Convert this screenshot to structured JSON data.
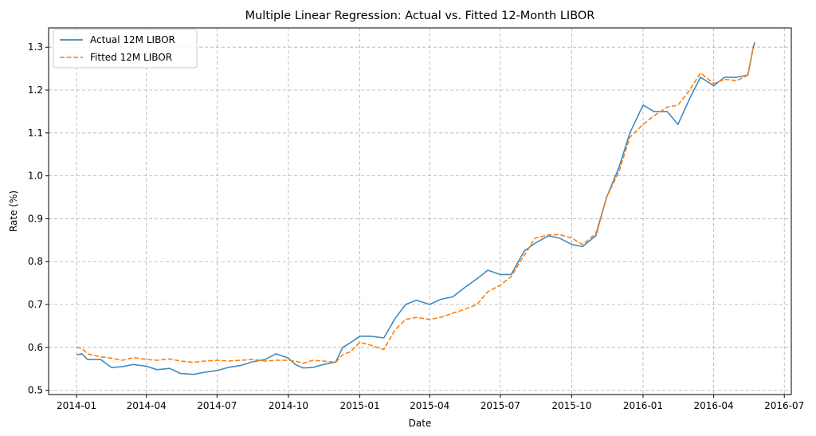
{
  "chart_data": {
    "type": "line",
    "title": "Multiple Linear Regression: Actual vs. Fitted 12-Month LIBOR",
    "xlabel": "Date",
    "ylabel": "Rate (%)",
    "xlim": [
      "2013-11-26",
      "2016-07-10"
    ],
    "ylim": [
      0.49,
      1.345
    ],
    "x_ticks": [
      {
        "date": "2014-01-01",
        "label": "2014-01"
      },
      {
        "date": "2014-04-01",
        "label": "2014-04"
      },
      {
        "date": "2014-07-01",
        "label": "2014-07"
      },
      {
        "date": "2014-10-01",
        "label": "2014-10"
      },
      {
        "date": "2015-01-01",
        "label": "2015-01"
      },
      {
        "date": "2015-04-01",
        "label": "2015-04"
      },
      {
        "date": "2015-07-01",
        "label": "2015-07"
      },
      {
        "date": "2015-10-01",
        "label": "2015-10"
      },
      {
        "date": "2016-01-01",
        "label": "2016-01"
      },
      {
        "date": "2016-04-01",
        "label": "2016-04"
      },
      {
        "date": "2016-07-01",
        "label": "2016-07"
      }
    ],
    "y_ticks": [
      {
        "value": 0.5,
        "label": "0.5"
      },
      {
        "value": 0.6,
        "label": "0.6"
      },
      {
        "value": 0.7,
        "label": "0.7"
      },
      {
        "value": 0.8,
        "label": "0.8"
      },
      {
        "value": 0.9,
        "label": "0.9"
      },
      {
        "value": 1.0,
        "label": "1.0"
      },
      {
        "value": 1.1,
        "label": "1.1"
      },
      {
        "value": 1.2,
        "label": "1.2"
      },
      {
        "value": 1.3,
        "label": "1.3"
      }
    ],
    "grid": true,
    "legend": {
      "position": "top-left"
    },
    "series": [
      {
        "name": "Actual 12M LIBOR",
        "color": "#1f77b4",
        "style": "solid",
        "x": [
          "2014-01-01",
          "2014-01-08",
          "2014-01-15",
          "2014-02-01",
          "2014-02-15",
          "2014-03-01",
          "2014-03-15",
          "2014-04-01",
          "2014-04-15",
          "2014-05-01",
          "2014-05-15",
          "2014-06-01",
          "2014-06-15",
          "2014-07-01",
          "2014-07-15",
          "2014-08-01",
          "2014-08-15",
          "2014-09-01",
          "2014-09-15",
          "2014-10-01",
          "2014-10-10",
          "2014-10-20",
          "2014-11-01",
          "2014-11-15",
          "2014-12-01",
          "2014-12-10",
          "2014-12-20",
          "2015-01-01",
          "2015-01-15",
          "2015-02-01",
          "2015-02-15",
          "2015-03-01",
          "2015-03-15",
          "2015-04-01",
          "2015-04-15",
          "2015-05-01",
          "2015-05-15",
          "2015-06-01",
          "2015-06-15",
          "2015-07-01",
          "2015-07-15",
          "2015-08-01",
          "2015-08-15",
          "2015-09-01",
          "2015-09-15",
          "2015-10-01",
          "2015-10-15",
          "2015-11-01",
          "2015-11-15",
          "2015-12-01",
          "2015-12-15",
          "2016-01-01",
          "2016-01-15",
          "2016-02-01",
          "2016-02-15",
          "2016-03-01",
          "2016-03-15",
          "2016-04-01",
          "2016-04-15",
          "2016-05-01",
          "2016-05-15",
          "2016-05-22",
          "2016-05-24"
        ],
        "y": [
          0.583,
          0.585,
          0.572,
          0.572,
          0.553,
          0.555,
          0.56,
          0.556,
          0.548,
          0.551,
          0.539,
          0.537,
          0.542,
          0.546,
          0.553,
          0.558,
          0.566,
          0.572,
          0.585,
          0.575,
          0.56,
          0.552,
          0.553,
          0.56,
          0.566,
          0.6,
          0.611,
          0.626,
          0.626,
          0.622,
          0.666,
          0.7,
          0.71,
          0.7,
          0.712,
          0.718,
          0.738,
          0.76,
          0.78,
          0.77,
          0.77,
          0.825,
          0.843,
          0.86,
          0.855,
          0.84,
          0.835,
          0.86,
          0.95,
          1.02,
          1.1,
          1.165,
          1.15,
          1.15,
          1.12,
          1.18,
          1.23,
          1.21,
          1.23,
          1.23,
          1.235,
          1.3,
          1.312
        ]
      },
      {
        "name": "Fitted 12M LIBOR",
        "color": "#ff7f0e",
        "style": "dashed",
        "x": [
          "2014-01-01",
          "2014-01-08",
          "2014-01-15",
          "2014-02-01",
          "2014-02-15",
          "2014-03-01",
          "2014-03-15",
          "2014-04-01",
          "2014-04-15",
          "2014-05-01",
          "2014-05-15",
          "2014-06-01",
          "2014-06-15",
          "2014-07-01",
          "2014-07-15",
          "2014-08-01",
          "2014-08-15",
          "2014-09-01",
          "2014-09-15",
          "2014-10-01",
          "2014-10-10",
          "2014-10-20",
          "2014-11-01",
          "2014-11-15",
          "2014-12-01",
          "2014-12-10",
          "2014-12-20",
          "2015-01-01",
          "2015-01-15",
          "2015-02-01",
          "2015-02-15",
          "2015-03-01",
          "2015-03-15",
          "2015-04-01",
          "2015-04-15",
          "2015-05-01",
          "2015-05-15",
          "2015-06-01",
          "2015-06-15",
          "2015-07-01",
          "2015-07-15",
          "2015-08-01",
          "2015-08-15",
          "2015-09-01",
          "2015-09-15",
          "2015-10-01",
          "2015-10-15",
          "2015-11-01",
          "2015-11-15",
          "2015-12-01",
          "2015-12-15",
          "2016-01-01",
          "2016-01-15",
          "2016-02-01",
          "2016-02-15",
          "2016-03-01",
          "2016-03-15",
          "2016-04-01",
          "2016-04-15",
          "2016-05-01",
          "2016-05-15",
          "2016-05-22",
          "2016-05-24"
        ],
        "y": [
          0.6,
          0.598,
          0.585,
          0.578,
          0.575,
          0.57,
          0.576,
          0.572,
          0.57,
          0.573,
          0.568,
          0.565,
          0.568,
          0.57,
          0.568,
          0.57,
          0.572,
          0.568,
          0.57,
          0.57,
          0.568,
          0.563,
          0.57,
          0.568,
          0.565,
          0.583,
          0.59,
          0.612,
          0.605,
          0.595,
          0.64,
          0.665,
          0.67,
          0.665,
          0.67,
          0.68,
          0.688,
          0.7,
          0.73,
          0.745,
          0.765,
          0.815,
          0.855,
          0.862,
          0.863,
          0.855,
          0.84,
          0.865,
          0.95,
          1.01,
          1.09,
          1.12,
          1.14,
          1.16,
          1.165,
          1.2,
          1.24,
          1.215,
          1.225,
          1.222,
          1.235,
          1.3,
          1.305
        ]
      }
    ]
  }
}
